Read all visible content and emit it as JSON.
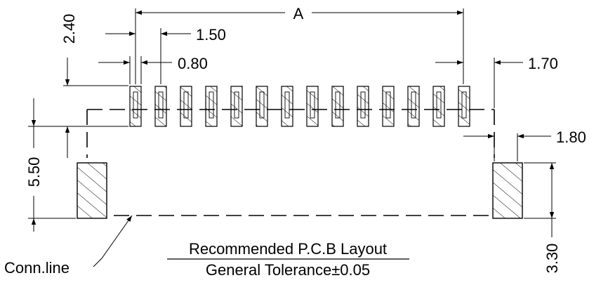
{
  "dimensions": {
    "a": "A",
    "d240": "2.40",
    "d150": "1.50",
    "d080": "0.80",
    "d170": "1.70",
    "d180": "1.80",
    "d550": "5.50",
    "d330": "3.30"
  },
  "labels": {
    "conn_line": "Conn.line",
    "title": "Recommended P.C.B Layout",
    "tolerance": "General Tolerance±0.05"
  },
  "pads": {
    "signal_count": 14
  },
  "colors": {
    "line": "#000000",
    "background": "#ffffff"
  }
}
